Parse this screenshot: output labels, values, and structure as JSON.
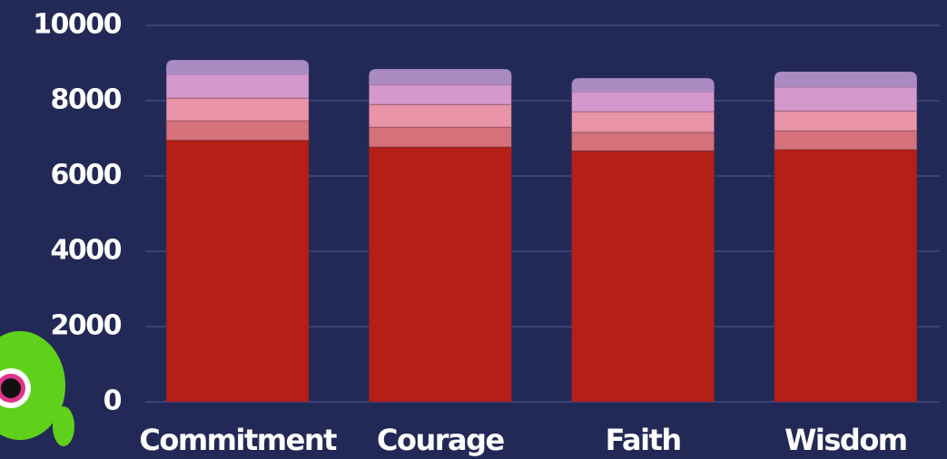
{
  "chart_data": {
    "type": "stacked-bar",
    "categories": [
      "Commitment",
      "Courage",
      "Faith",
      "Wisdom"
    ],
    "series": [
      {
        "color": "#b41f18",
        "values": [
          6950,
          6770,
          6670,
          6700
        ]
      },
      {
        "color": "#d4717a",
        "values": [
          520,
          530,
          490,
          500
        ]
      },
      {
        "color": "#e994a8",
        "values": [
          600,
          600,
          550,
          530
        ]
      },
      {
        "color": "#d598cc",
        "values": [
          630,
          530,
          530,
          630
        ]
      },
      {
        "color": "#a98bc2",
        "values": [
          380,
          410,
          360,
          410
        ]
      }
    ],
    "ylim": [
      0,
      10000
    ],
    "yticks": [
      0,
      2000,
      4000,
      6000,
      8000,
      10000
    ],
    "grid": true
  }
}
